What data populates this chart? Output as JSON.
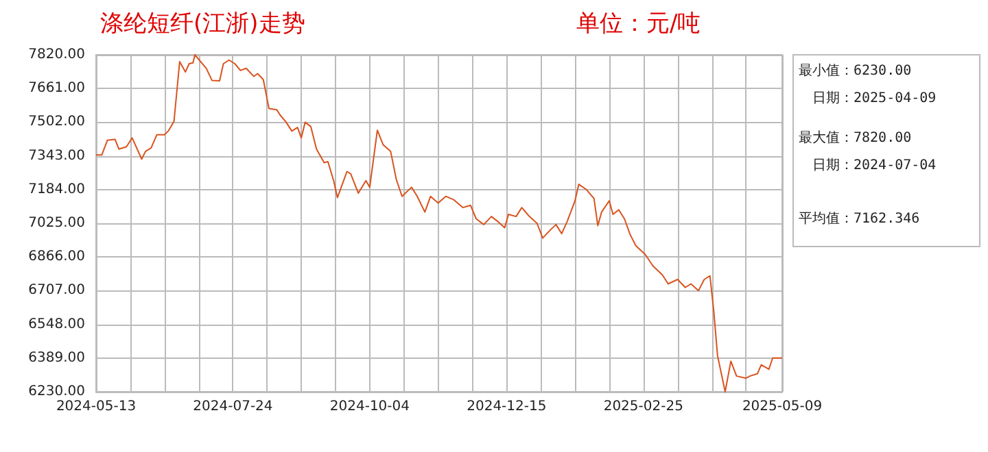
{
  "chart_data": {
    "type": "line",
    "title": "涤纶短纤(江浙)走势",
    "subtitle": "单位：元/吨",
    "x": [
      "2024-05-13",
      "2024-05-16",
      "2024-05-19",
      "2024-05-23",
      "2024-05-25",
      "2024-05-29",
      "2024-06-01",
      "2024-06-06",
      "2024-06-08",
      "2024-06-11",
      "2024-06-14",
      "2024-06-18",
      "2024-06-20",
      "2024-06-23",
      "2024-06-26",
      "2024-06-29",
      "2024-07-01",
      "2024-07-03",
      "2024-07-04",
      "2024-07-10",
      "2024-07-13",
      "2024-07-17",
      "2024-07-19",
      "2024-07-22",
      "2024-07-25",
      "2024-07-28",
      "2024-07-31",
      "2024-08-04",
      "2024-08-06",
      "2024-08-09",
      "2024-08-12",
      "2024-08-16",
      "2024-08-18",
      "2024-08-21",
      "2024-08-24",
      "2024-08-27",
      "2024-08-29",
      "2024-08-31",
      "2024-09-03",
      "2024-09-06",
      "2024-09-10",
      "2024-09-12",
      "2024-09-15",
      "2024-09-17",
      "2024-09-22",
      "2024-09-24",
      "2024-09-28",
      "2024-10-02",
      "2024-10-04",
      "2024-10-08",
      "2024-10-11",
      "2024-10-15",
      "2024-10-18",
      "2024-10-21",
      "2024-10-26",
      "2024-10-29",
      "2024-11-02",
      "2024-11-05",
      "2024-11-09",
      "2024-11-13",
      "2024-11-17",
      "2024-11-22",
      "2024-11-26",
      "2024-11-29",
      "2024-12-03",
      "2024-12-07",
      "2024-12-10",
      "2024-12-14",
      "2024-12-16",
      "2024-12-20",
      "2024-12-23",
      "2024-12-27",
      "2024-12-31",
      "2025-01-03",
      "2025-01-07",
      "2025-01-10",
      "2025-01-13",
      "2025-01-16",
      "2025-01-20",
      "2025-01-22",
      "2025-01-26",
      "2025-01-30",
      "2025-02-01",
      "2025-02-03",
      "2025-02-07",
      "2025-02-09",
      "2025-02-12",
      "2025-02-15",
      "2025-02-18",
      "2025-02-21",
      "2025-02-26",
      "2025-03-02",
      "2025-03-07",
      "2025-03-10",
      "2025-03-15",
      "2025-03-19",
      "2025-03-22",
      "2025-03-26",
      "2025-03-29",
      "2025-04-01",
      "2025-04-03",
      "2025-04-05",
      "2025-04-09",
      "2025-04-12",
      "2025-04-15",
      "2025-04-20",
      "2025-04-22",
      "2025-04-26",
      "2025-04-28",
      "2025-05-02",
      "2025-05-04",
      "2025-05-09"
    ],
    "series": [
      {
        "color": "#d9531e",
        "values": [
          7347,
          7347,
          7417,
          7421,
          7375,
          7386,
          7428,
          7328,
          7364,
          7381,
          7443,
          7443,
          7460,
          7506,
          7788,
          7739,
          7778,
          7782,
          7820,
          7756,
          7699,
          7697,
          7778,
          7795,
          7778,
          7746,
          7756,
          7718,
          7731,
          7703,
          7566,
          7561,
          7534,
          7502,
          7460,
          7477,
          7428,
          7502,
          7481,
          7375,
          7311,
          7316,
          7226,
          7146,
          7269,
          7258,
          7167,
          7226,
          7195,
          7464,
          7396,
          7364,
          7231,
          7152,
          7195,
          7152,
          7078,
          7152,
          7120,
          7152,
          7137,
          7099,
          7110,
          7046,
          7019,
          7057,
          7036,
          7004,
          7067,
          7057,
          7099,
          7057,
          7025,
          6955,
          6993,
          7019,
          6976,
          7036,
          7131,
          7209,
          7184,
          7142,
          7014,
          7078,
          7131,
          7067,
          7089,
          7046,
          6972,
          6919,
          6877,
          6824,
          6781,
          6739,
          6760,
          6722,
          6739,
          6707,
          6760,
          6777,
          6612,
          6400,
          6230,
          6374,
          6304,
          6294,
          6304,
          6315,
          6357,
          6336,
          6389,
          6389
        ]
      }
    ],
    "xlim": [
      "2024-05-13",
      "2025-05-09"
    ],
    "xticks": [
      {
        "value": "2024-05-13",
        "label": "2024-05-13"
      },
      {
        "value": "2024-05-31",
        "label": null
      },
      {
        "value": "2024-06-18",
        "label": null
      },
      {
        "value": "2024-07-06",
        "label": null
      },
      {
        "value": "2024-07-24",
        "label": "2024-07-24"
      },
      {
        "value": "2024-08-11",
        "label": null
      },
      {
        "value": "2024-08-29",
        "label": null
      },
      {
        "value": "2024-09-16",
        "label": null
      },
      {
        "value": "2024-10-04",
        "label": "2024-10-04"
      },
      {
        "value": "2024-10-22",
        "label": null
      },
      {
        "value": "2024-11-09",
        "label": null
      },
      {
        "value": "2024-11-27",
        "label": null
      },
      {
        "value": "2024-12-15",
        "label": "2024-12-15"
      },
      {
        "value": "2025-01-02",
        "label": null
      },
      {
        "value": "2025-01-20",
        "label": null
      },
      {
        "value": "2025-02-07",
        "label": null
      },
      {
        "value": "2025-02-25",
        "label": "2025-02-25"
      },
      {
        "value": "2025-03-15",
        "label": null
      },
      {
        "value": "2025-04-02",
        "label": null
      },
      {
        "value": "2025-04-20",
        "label": null
      },
      {
        "value": "2025-05-09",
        "label": "2025-05-09"
      }
    ],
    "ylim": [
      6230,
      7820
    ],
    "yticks": [
      {
        "value": 6230,
        "label": "6230.00"
      },
      {
        "value": 6389,
        "label": "6389.00"
      },
      {
        "value": 6548,
        "label": "6548.00"
      },
      {
        "value": 6707,
        "label": "6707.00"
      },
      {
        "value": 6866,
        "label": "6866.00"
      },
      {
        "value": 7025,
        "label": "7025.00"
      },
      {
        "value": 7184,
        "label": "7184.00"
      },
      {
        "value": 7343,
        "label": "7343.00"
      },
      {
        "value": 7502,
        "label": "7502.00"
      },
      {
        "value": 7661,
        "label": "7661.00"
      },
      {
        "value": 7820,
        "label": "7820.00"
      }
    ],
    "grid": true,
    "marker": "none",
    "line_style": "solid",
    "annotations": [
      "最小值：6230.00",
      "日期：2025-04-09",
      "最大值：7820.00",
      "日期：2024-07-04",
      "平均值：7162.346"
    ]
  }
}
